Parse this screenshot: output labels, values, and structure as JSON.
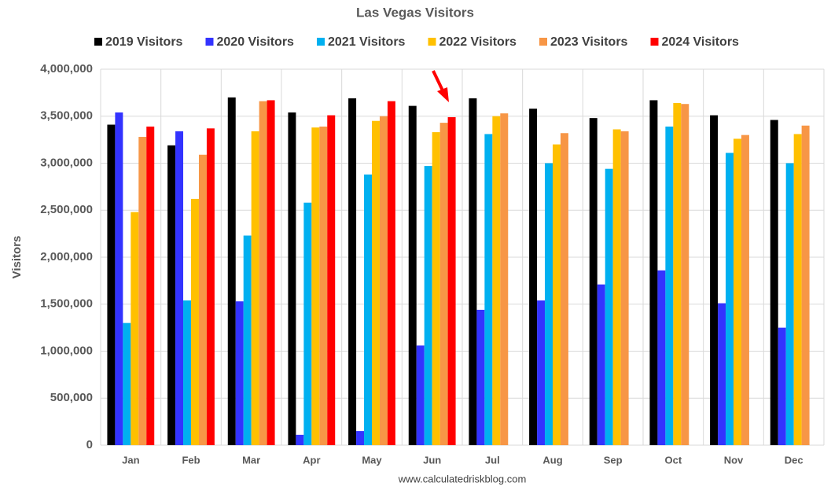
{
  "chart_data": {
    "type": "bar",
    "title": "Las Vegas Visitors",
    "y_label": "Visitors",
    "source": "www.calculatedriskblog.com",
    "categories": [
      "Jan",
      "Feb",
      "Mar",
      "Apr",
      "May",
      "Jun",
      "Jul",
      "Aug",
      "Sep",
      "Oct",
      "Nov",
      "Dec"
    ],
    "series": [
      {
        "name": "2019 Visitors",
        "color": "#000000",
        "values": [
          3410000,
          3190000,
          3700000,
          3540000,
          3690000,
          3610000,
          3690000,
          3580000,
          3480000,
          3670000,
          3510000,
          3460000
        ]
      },
      {
        "name": "2020 Visitors",
        "color": "#3333ff",
        "values": [
          3540000,
          3340000,
          1530000,
          110000,
          150000,
          1060000,
          1440000,
          1540000,
          1710000,
          1860000,
          1510000,
          1250000
        ]
      },
      {
        "name": "2021 Visitors",
        "color": "#00b0f0",
        "values": [
          1300000,
          1540000,
          2230000,
          2580000,
          2880000,
          2970000,
          3310000,
          3000000,
          2940000,
          3390000,
          3110000,
          3000000
        ]
      },
      {
        "name": "2022 Visitors",
        "color": "#ffc000",
        "values": [
          2480000,
          2620000,
          3340000,
          3380000,
          3450000,
          3330000,
          3500000,
          3200000,
          3360000,
          3640000,
          3260000,
          3310000
        ]
      },
      {
        "name": "2023 Visitors",
        "color": "#f79646",
        "values": [
          3280000,
          3090000,
          3660000,
          3390000,
          3500000,
          3430000,
          3530000,
          3320000,
          3340000,
          3630000,
          3300000,
          3400000
        ]
      },
      {
        "name": "2024 Visitors",
        "color": "#ff0000",
        "values": [
          3390000,
          3370000,
          3670000,
          3510000,
          3660000,
          3490000,
          null,
          null,
          null,
          null,
          null,
          null
        ]
      }
    ],
    "ylim": [
      0,
      4000000
    ],
    "yticks": [
      0,
      {
        "value": 500000,
        "label": "500,000"
      },
      {
        "value": 1000000,
        "label": "1,000,000"
      },
      {
        "value": 1500000,
        "label": "1,500,000"
      },
      {
        "value": 2000000,
        "label": "2,000,000"
      },
      {
        "value": 2500000,
        "label": "2,500,000"
      },
      {
        "value": 3000000,
        "label": "3,000,000"
      },
      {
        "value": 3500000,
        "label": "3,500,000"
      },
      {
        "value": 4000000,
        "label": "4,000,000"
      }
    ],
    "grid": true
  }
}
